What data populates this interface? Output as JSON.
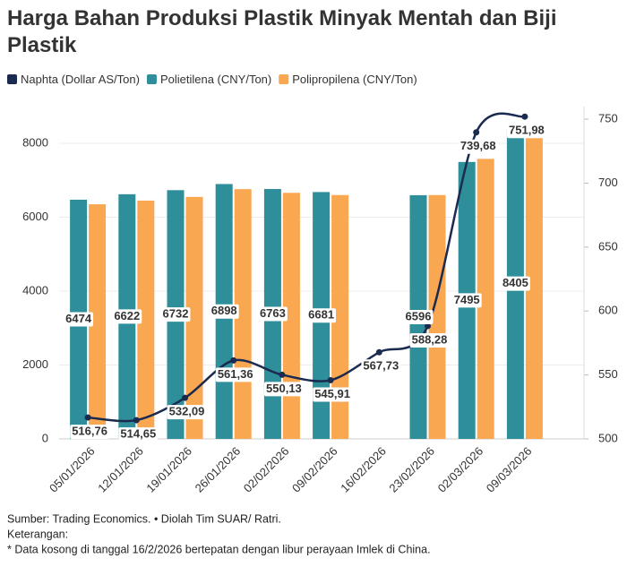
{
  "chart_data": {
    "type": "bar",
    "title": "Harga Bahan Produksi Plastik Minyak Mentah dan Biji Plastik",
    "categories": [
      "05/01/2026",
      "12/01/2026",
      "19/01/2026",
      "26/01/2026",
      "02/02/2026",
      "09/02/2026",
      "16/02/2026",
      "23/02/2026",
      "02/03/2026",
      "09/03/2026"
    ],
    "series": [
      {
        "name": "Naphta (Dollar AS/Ton)",
        "color": "#1b2a4f",
        "type": "line",
        "axis": "y2",
        "labels": true,
        "values": [
          516.76,
          514.65,
          532.09,
          561.36,
          550.13,
          545.91,
          567.73,
          588.28,
          739.68,
          751.98
        ],
        "value_labels": [
          "516,76",
          "514,65",
          "532,09",
          "561,36",
          "550,13",
          "545,91",
          "567,73",
          "588,28",
          "739,68",
          "751,98"
        ]
      },
      {
        "name": "Polietilena (CNY/Ton)",
        "color": "#2e8e9a",
        "type": "bar",
        "labels": true,
        "values": [
          6474,
          6622,
          6732,
          6898,
          6763,
          6681,
          null,
          6596,
          7495,
          8405
        ]
      },
      {
        "name": "Polipropilena (CNY/Ton)",
        "color": "#f9a750",
        "type": "bar",
        "labels": false,
        "values": [
          6350,
          6450,
          6550,
          6760,
          6660,
          6600,
          null,
          6600,
          7580,
          8350
        ]
      }
    ],
    "ylim": [
      0,
      9000
    ],
    "yticks": [
      0,
      2000,
      4000,
      6000,
      8000
    ],
    "y2lim": [
      500,
      760
    ],
    "y2ticks": [
      500,
      550,
      600,
      650,
      700,
      750
    ],
    "grid": true,
    "legend": "top",
    "notes": [
      "Sumber: Trading Economics. • Diolah Tim SUAR/ Ratri.",
      "Keterangan:",
      "* Data kosong di tanggal 16/2/2026 bertepatan dengan libur perayaan Imlek di China."
    ]
  }
}
